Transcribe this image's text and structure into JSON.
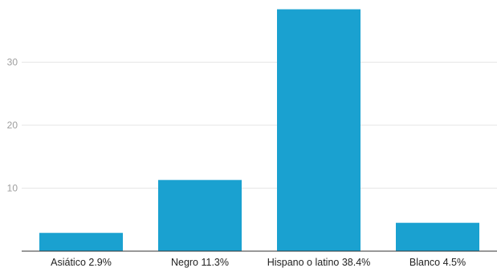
{
  "chart_data": {
    "type": "bar",
    "categories": [
      "Asiático 2.9%",
      "Negro 11.3%",
      "Hispano o latino 38.4%",
      "Blanco 4.5%"
    ],
    "values": [
      2.9,
      11.3,
      38.4,
      4.5
    ],
    "yticks": [
      10,
      20,
      30
    ],
    "ylim": [
      0,
      40
    ],
    "title": "",
    "xlabel": "",
    "ylabel": "",
    "grid": true,
    "colors": {
      "bar": "#1aa1d0"
    }
  }
}
